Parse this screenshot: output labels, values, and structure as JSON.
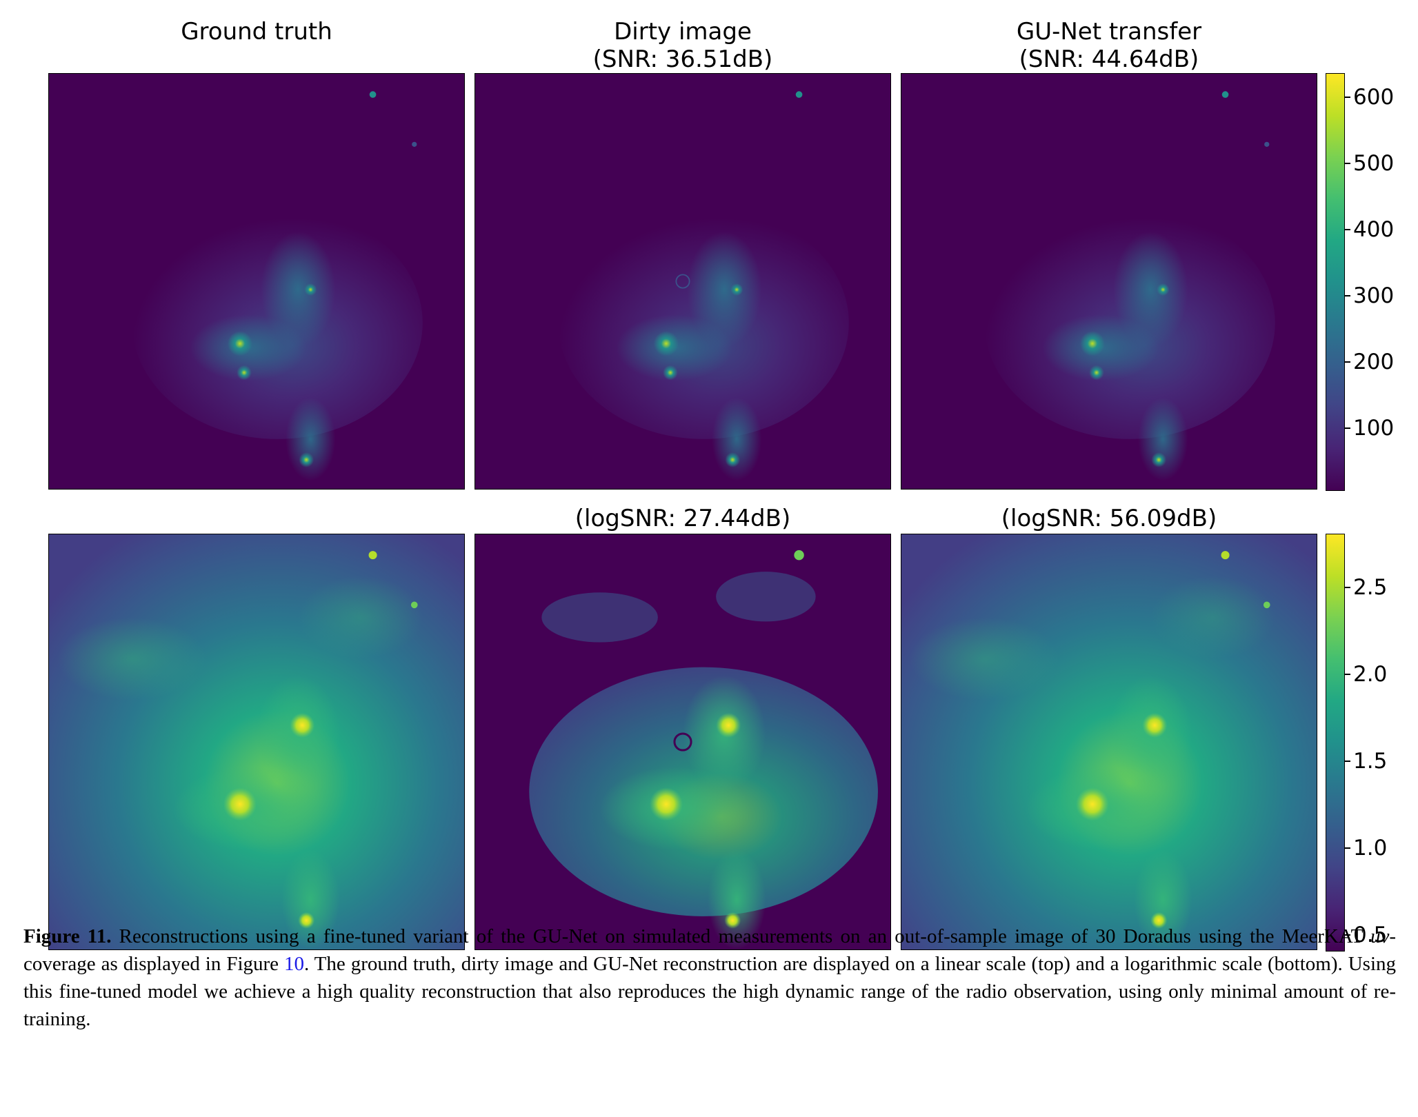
{
  "titles": {
    "col1_line1": "Ground truth",
    "col2_line1": "Dirty image",
    "col2_line2": "(SNR: 36.51dB)",
    "col3_line1": "GU-Net transfer",
    "col3_line2": "(SNR: 44.64dB)",
    "row2_col2": "(logSNR: 27.44dB)",
    "row2_col3": "(logSNR: 56.09dB)"
  },
  "colorbar_top": {
    "ticks": [
      "600",
      "500",
      "400",
      "300",
      "200",
      "100"
    ],
    "range": [
      5,
      635
    ],
    "colormap": "viridis"
  },
  "colorbar_bottom": {
    "ticks": [
      "2.5",
      "2.0",
      "1.5",
      "1.0",
      "0.5"
    ],
    "range": [
      0.4,
      2.8
    ],
    "colormap": "viridis"
  },
  "caption": {
    "label": "Figure 11.",
    "text1": " Reconstructions using a fine-tuned variant of the GU-Net on simulated measurements on an out-of-sample image of 30 Doradus using the MeerKAT ",
    "uv": "uv",
    "text2": "-coverage as displayed in Figure ",
    "figref": "10",
    "text3": ". The ground truth, dirty image and GU-Net reconstruction are displayed on a linear scale (top) and a logarithmic scale (bottom). Using this fine-tuned model we achieve a high quality reconstruction that also reproduces the high dynamic range of the radio observation, using only minimal amount of re-training."
  },
  "colors": {
    "viridis_low": "#440154",
    "viridis_high": "#fde725",
    "figure_link": "#1a1ae6"
  }
}
